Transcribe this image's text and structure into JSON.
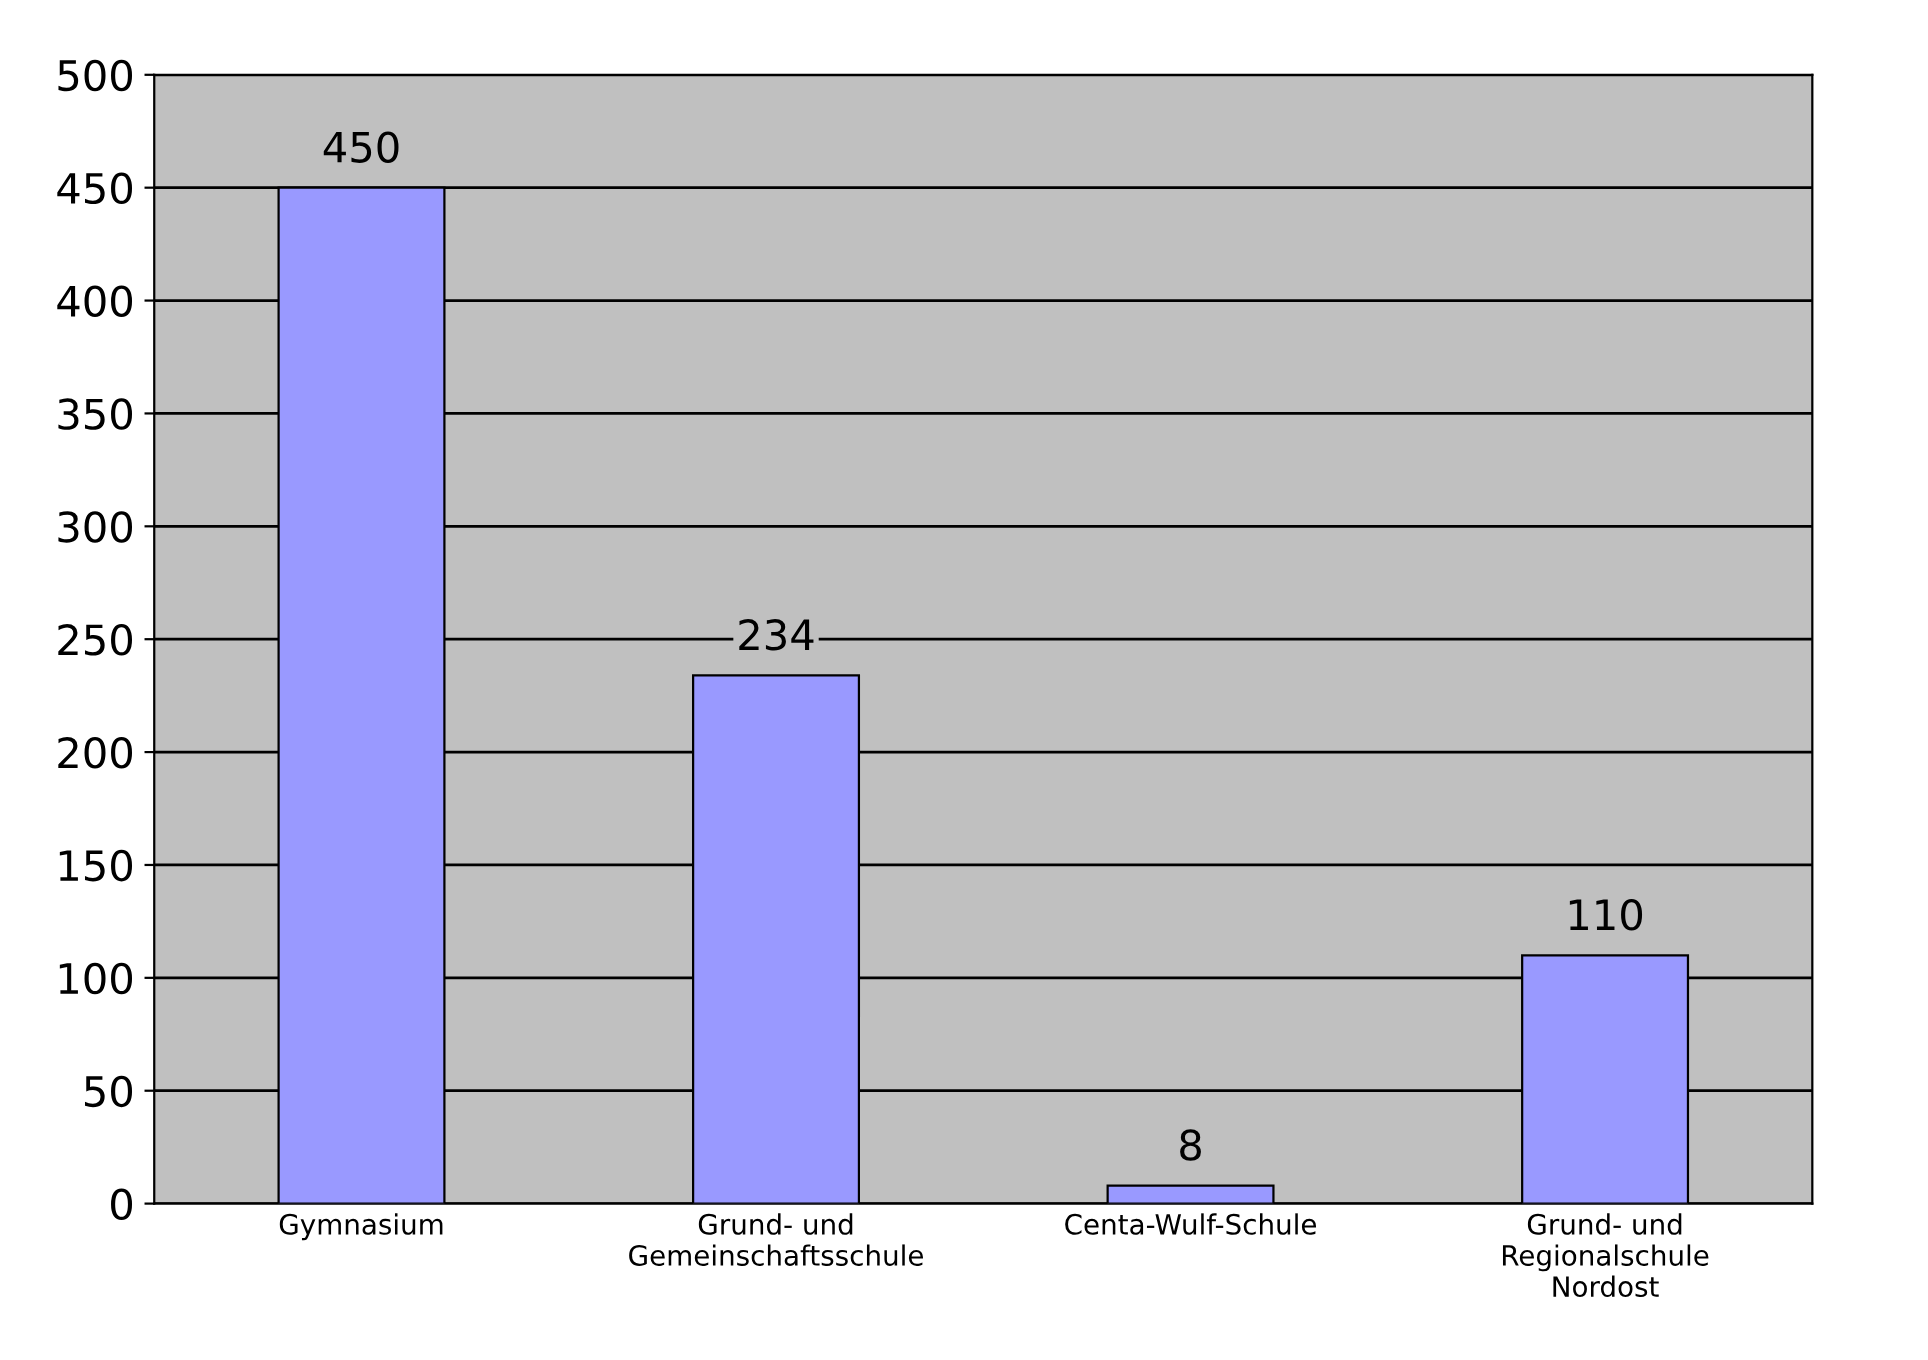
{
  "chart_data": {
    "type": "bar",
    "categories": [
      "Gymnasium",
      "Grund- und\nGemeinschaftsschule",
      "Centa-Wulf-Schule",
      "Grund- und\nRegionalschule\nNordost"
    ],
    "values": [
      450,
      234,
      8,
      110
    ],
    "color": "#9999ff",
    "data_labels": true,
    "ylim": [
      0,
      500
    ],
    "yticks": [
      0,
      50,
      100,
      150,
      200,
      250,
      300,
      350,
      400,
      450,
      500
    ],
    "grid": "y",
    "legend": false
  }
}
